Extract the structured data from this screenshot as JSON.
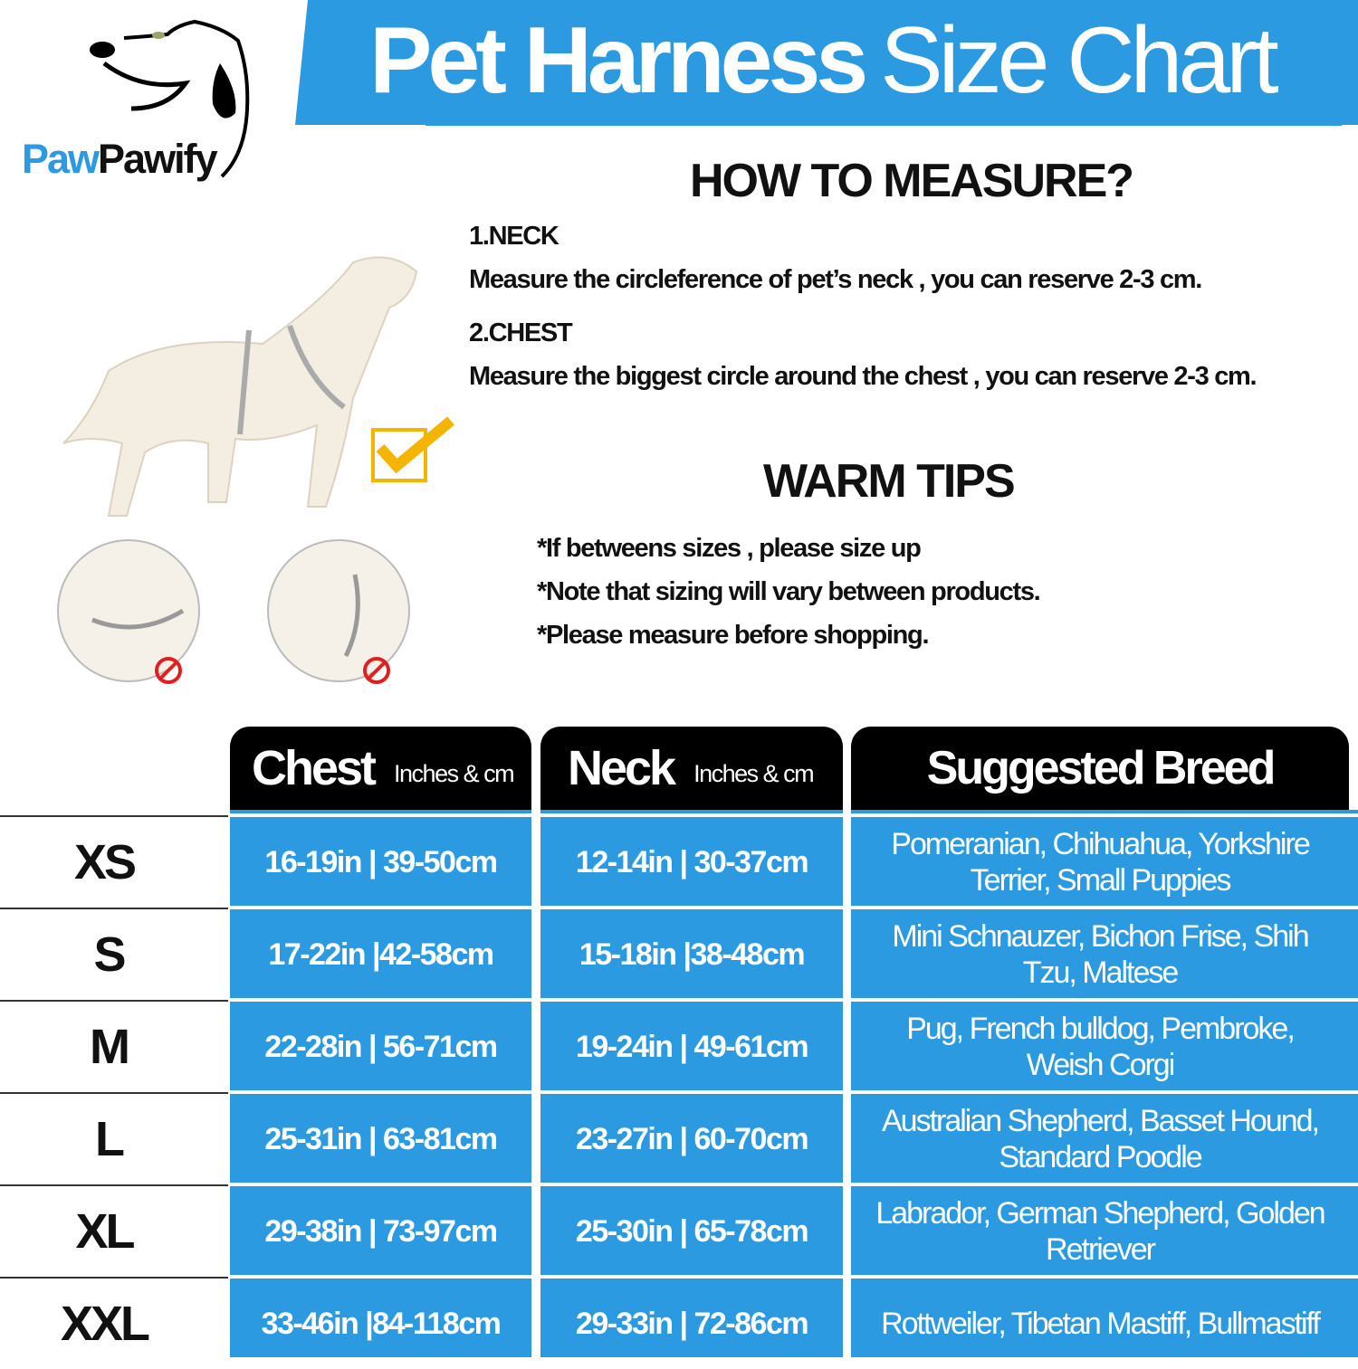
{
  "brand": {
    "part1": "Paw",
    "part2": "Pawify",
    "accent": "#2b9ae0"
  },
  "title": {
    "bold": "Pet Harness",
    "light": "Size Chart"
  },
  "how_to_measure": {
    "heading": "HOW TO MEASURE?",
    "steps": [
      {
        "label": "1.NECK",
        "text": "Measure the circleference of pet’s neck , you can reserve 2-3 cm."
      },
      {
        "label": "2.CHEST",
        "text": "Measure the biggest circle around the chest , you can reserve 2-3 cm."
      }
    ]
  },
  "warm_tips": {
    "heading": "WARM TIPS",
    "tips": [
      "*If betweens sizes , please size up",
      "*Note that sizing will vary between products.",
      "*Please measure before shopping."
    ]
  },
  "icons": [
    "dog-logo-icon",
    "checkmark-icon",
    "no-sign-icon"
  ],
  "table": {
    "headers": {
      "chest": "Chest",
      "chest_unit": "Inches & cm",
      "neck": "Neck",
      "neck_unit": "Inches & cm",
      "breed": "Suggested Breed"
    },
    "rows": [
      {
        "size": "XS",
        "chest": "16-19in | 39-50cm",
        "neck": "12-14in | 30-37cm",
        "breed": "Pomeranian, Chihuahua, Yorkshire Terrier, Small Puppies"
      },
      {
        "size": "S",
        "chest": "17-22in |42-58cm",
        "neck": "15-18in |38-48cm",
        "breed": "Mini Schnauzer, Bichon Frise, Shih Tzu, Maltese"
      },
      {
        "size": "M",
        "chest": "22-28in | 56-71cm",
        "neck": "19-24in | 49-61cm",
        "breed": "Pug, French bulldog, Pembroke, Weish Corgi"
      },
      {
        "size": "L",
        "chest": "25-31in | 63-81cm",
        "neck": "23-27in | 60-70cm",
        "breed": "Australian Shepherd, Basset Hound, Standard Poodle"
      },
      {
        "size": "XL",
        "chest": "29-38in | 73-97cm",
        "neck": "25-30in | 65-78cm",
        "breed": "Labrador, German Shepherd, Golden Retriever"
      },
      {
        "size": "XXL",
        "chest": "33-46in |84-118cm",
        "neck": "29-33in | 72-86cm",
        "breed": "Rottweiler, Tibetan Mastiff, Bullmastiff"
      }
    ]
  }
}
